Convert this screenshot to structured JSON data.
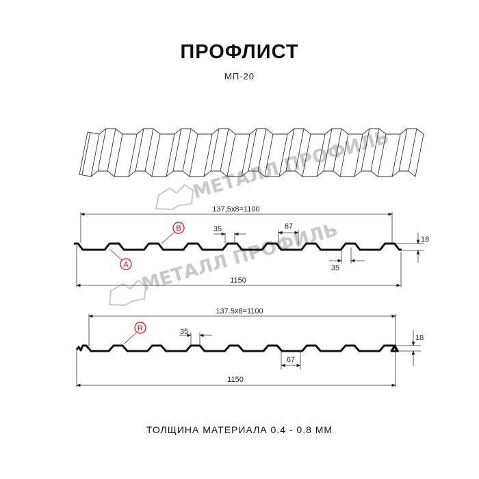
{
  "header": {
    "title": "ПРОФЛИСТ",
    "subtitle": "МП-20"
  },
  "watermark": {
    "text": "МЕТАЛЛ ПРОФИЛЬ"
  },
  "diagram_top": {
    "pitch_label": "137,5x8=1100",
    "width_label": "1150",
    "rib_top_label": "35",
    "rib_span_label": "67",
    "rib_bottom_label": "35",
    "height_label": "18",
    "marker_a": "A",
    "marker_b": "B"
  },
  "diagram_bottom": {
    "pitch_label": "137.5x8=1100",
    "width_label": "1150",
    "rib_top_label": "35",
    "rib_span_label": "67",
    "height_label": "18",
    "marker_r": "R"
  },
  "footer": {
    "thickness": "ТОЛЩИНА МАТЕРИАЛА 0.4 - 0.8 ММ"
  },
  "colors": {
    "profile": "#111111",
    "marker": "#e00000",
    "watermark": "#c9c9c9",
    "dimension": "#333333"
  }
}
